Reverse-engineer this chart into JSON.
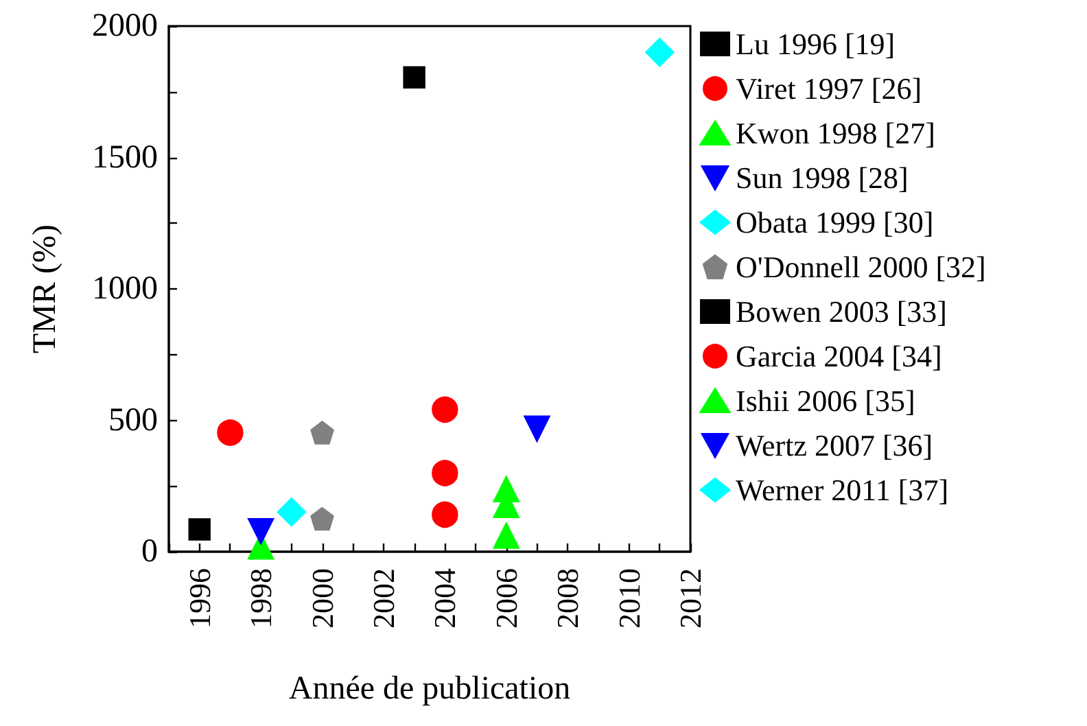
{
  "chart_data": {
    "type": "scatter",
    "xlabel": "Année de publication",
    "ylabel": "TMR (%)",
    "xlim": [
      1995,
      2012
    ],
    "ylim": [
      0,
      2000
    ],
    "xticks": [
      {
        "value": 1995,
        "label": null
      },
      1996,
      {
        "value": 1997,
        "label": null
      },
      1998,
      {
        "value": 1999,
        "label": null
      },
      2000,
      {
        "value": 2001,
        "label": null
      },
      2002,
      {
        "value": 2003,
        "label": null
      },
      2004,
      {
        "value": 2005,
        "label": null
      },
      2006,
      {
        "value": 2007,
        "label": null
      },
      2008,
      {
        "value": 2009,
        "label": null
      },
      2010,
      {
        "value": 2011,
        "label": null
      },
      2012
    ],
    "yticks": [
      0,
      {
        "value": 250,
        "label": null
      },
      500,
      {
        "value": 750,
        "label": null
      },
      1000,
      {
        "value": 1250,
        "label": null
      },
      1500,
      {
        "value": 1750,
        "label": null
      },
      2000
    ],
    "grid": false,
    "legend": "right",
    "series": [
      {
        "name": "Lu 1996 [19]",
        "color": "#000000",
        "marker": "square",
        "x": [
          1996
        ],
        "values": [
          85
        ]
      },
      {
        "name": "Viret 1997 [26]",
        "color": "#ff0000",
        "marker": "circle",
        "x": [
          1997
        ],
        "values": [
          453
        ]
      },
      {
        "name": "Kwon 1998 [27]",
        "color": "#00ff00",
        "marker": "triangle",
        "x": [
          1998
        ],
        "values": [
          20
        ]
      },
      {
        "name": "Sun 1998 [28]",
        "color": "#0000ff",
        "marker": "triangle-down",
        "x": [
          1998
        ],
        "values": [
          78
        ]
      },
      {
        "name": "Obata 1999 [30]",
        "color": "#00ffff",
        "marker": "diamond",
        "x": [
          1999
        ],
        "values": [
          151
        ]
      },
      {
        "name": "O'Donnell 2000 [32]",
        "color": "#808080",
        "x": [
          2000,
          2000
        ],
        "values": [
          453,
          125
        ]
      },
      {
        "name": "Bowen 2003 [33]",
        "color": "#000000",
        "marker": "square",
        "x": [
          2003
        ],
        "values": [
          1805
        ]
      },
      {
        "name": "Garcia 2004 [34]",
        "color": "#ff0000",
        "marker": "circle",
        "x": [
          2004,
          2004,
          2004
        ],
        "values": [
          541,
          299,
          141
        ]
      },
      {
        "name": "Ishii 2006 [35]",
        "color": "#00ff00",
        "marker": "triangle",
        "x": [
          2006,
          2006,
          2006
        ],
        "values": [
          238,
          178,
          61
        ]
      },
      {
        "name": "Wertz 2007 [36]",
        "color": "#0000ff",
        "marker": "triangle-down",
        "x": [
          2007
        ],
        "values": [
          468
        ]
      },
      {
        "name": "Werner 2011 [37]",
        "color": "#00ffff",
        "marker": "diamond",
        "x": [
          2011
        ],
        "values": [
          1900
        ]
      }
    ]
  }
}
